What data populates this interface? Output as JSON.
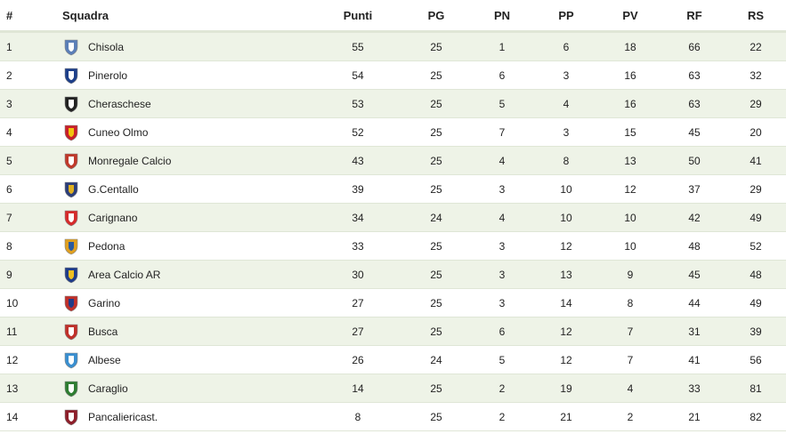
{
  "table": {
    "columns": [
      "#",
      "Squadra",
      "Punti",
      "PG",
      "PN",
      "PP",
      "PV",
      "RF",
      "RS"
    ],
    "rows": [
      [
        1,
        "Chisola",
        55,
        25,
        1,
        6,
        18,
        66,
        22
      ],
      [
        2,
        "Pinerolo",
        54,
        25,
        6,
        3,
        16,
        63,
        32
      ],
      [
        3,
        "Cheraschese",
        53,
        25,
        5,
        4,
        16,
        63,
        29
      ],
      [
        4,
        "Cuneo Olmo",
        52,
        25,
        7,
        3,
        15,
        45,
        20
      ],
      [
        5,
        "Monregale Calcio",
        43,
        25,
        4,
        8,
        13,
        50,
        41
      ],
      [
        6,
        "G.Centallo",
        39,
        25,
        3,
        10,
        12,
        37,
        29
      ],
      [
        7,
        "Carignano",
        34,
        24,
        4,
        10,
        10,
        42,
        49
      ],
      [
        8,
        "Pedona",
        33,
        25,
        3,
        12,
        10,
        48,
        52
      ],
      [
        9,
        "Area Calcio AR",
        30,
        25,
        3,
        13,
        9,
        45,
        48
      ],
      [
        10,
        "Garino",
        27,
        25,
        3,
        14,
        8,
        44,
        49
      ],
      [
        11,
        "Busca",
        27,
        25,
        6,
        12,
        7,
        31,
        39
      ],
      [
        12,
        "Albese",
        26,
        24,
        5,
        12,
        7,
        41,
        56
      ],
      [
        13,
        "Caraglio",
        14,
        25,
        2,
        19,
        4,
        33,
        81
      ],
      [
        14,
        "Pancaliericast.",
        8,
        25,
        2,
        21,
        2,
        21,
        82
      ]
    ]
  }
}
